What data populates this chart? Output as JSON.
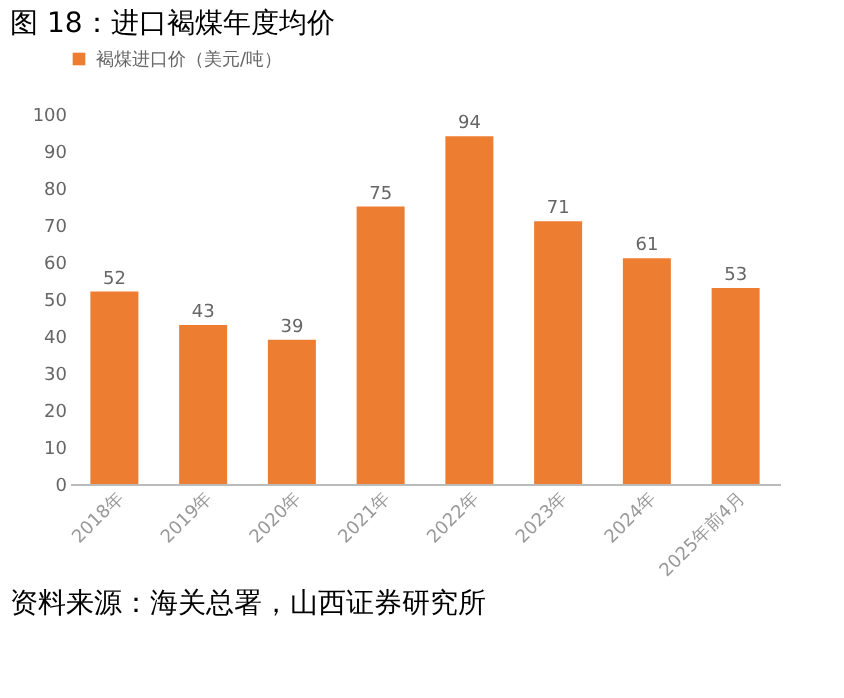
{
  "chart_data": {
    "type": "bar",
    "title": "图 18：进口褐煤年度均价",
    "categories": [
      "2018年",
      "2019年",
      "2020年",
      "2021年",
      "2022年",
      "2023年",
      "2024年",
      "2025年前4月"
    ],
    "series": [
      {
        "name": "褐煤进口价（美元/吨）",
        "color": "#ed7d31",
        "values": [
          52,
          43,
          39,
          75,
          94,
          71,
          61,
          53
        ]
      }
    ],
    "ylim": [
      0,
      100
    ],
    "yticks": [
      0,
      10,
      20,
      30,
      40,
      50,
      60,
      70,
      80,
      90,
      100
    ],
    "data_labels": true,
    "grid": false,
    "legend": "top",
    "annotations": [
      "资料来源：海关总署，山西证券研究所"
    ]
  }
}
